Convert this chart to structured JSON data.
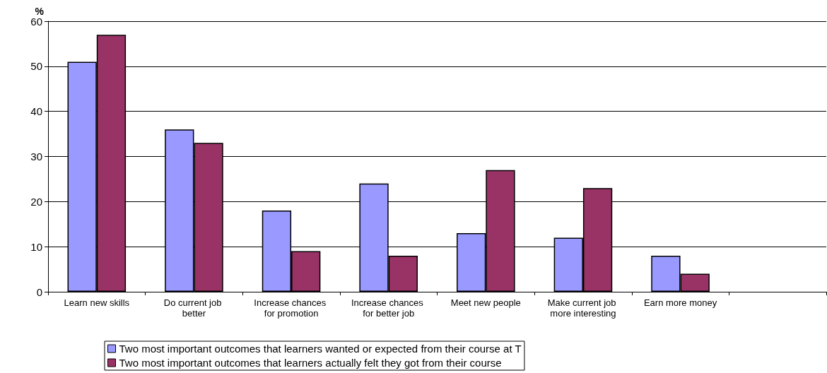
{
  "chart_data": {
    "type": "bar",
    "ylabel": "%",
    "categories": [
      "Learn new skills",
      "Do current job better",
      "Increase chances for promotion",
      "Increase chances for better job",
      "Meet new people",
      "Make current job more interesting",
      "Earn more money",
      null
    ],
    "series": [
      {
        "name": "Two most important outcomes that learners wanted or expected from their course at T",
        "color": "#9999ff",
        "values": [
          51,
          36,
          18,
          24,
          13,
          12,
          8,
          null
        ]
      },
      {
        "name": "Two most important outcomes that learners actually felt they got from their course",
        "color": "#993366",
        "values": [
          57,
          33,
          9,
          8,
          27,
          23,
          4,
          null
        ]
      }
    ],
    "ylim": [
      0,
      60
    ],
    "yticks": [
      0,
      10,
      20,
      30,
      40,
      50,
      60
    ],
    "grid": "y",
    "legend": "bottom"
  }
}
